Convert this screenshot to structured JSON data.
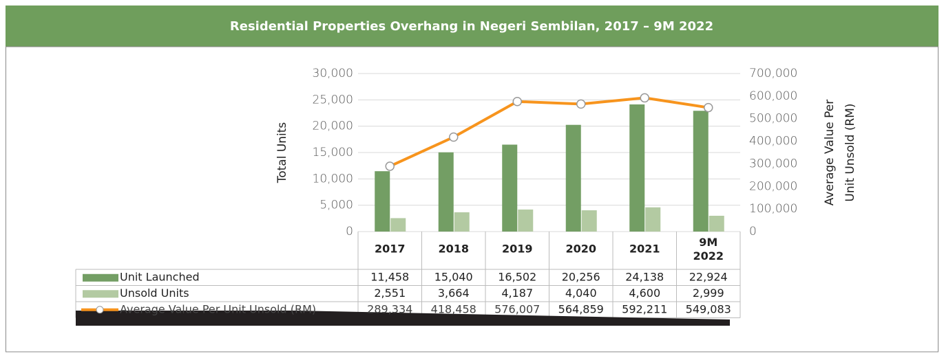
{
  "chart_data": {
    "type": "bar_line_table",
    "title": "Residential Properties Overhang in Negeri Sembilan, 2017 – 9M 2022",
    "ylabel": "Total Units",
    "y2label": "Average Value Per Unit Unsold (RM)",
    "categories": [
      "2017",
      "2018",
      "2019",
      "2020",
      "2021",
      "9M 2022"
    ],
    "series": [
      {
        "name": "Unit Launched",
        "color": "#739e64",
        "type": "bar",
        "values": [
          11458,
          15040,
          16502,
          20256,
          24138,
          22924
        ],
        "value_labels": [
          "11,458",
          "15,040",
          "16,502",
          "20,256",
          "24,138",
          "22,924"
        ]
      },
      {
        "name": "Unsold Units",
        "color": "#b3caa2",
        "type": "bar",
        "values": [
          2551,
          3664,
          4187,
          4040,
          4600,
          2999
        ],
        "value_labels": [
          "2,551",
          "3,664",
          "4,187",
          "4,040",
          "4,600",
          "2,999"
        ]
      },
      {
        "name": "Average Value Per Unit Unsold (RM)",
        "color": "#f7941d",
        "type": "line",
        "axis": "y2",
        "values": [
          289334,
          418458,
          576007,
          564859,
          592211,
          549083
        ],
        "value_labels": [
          "289,334",
          "418,458",
          "576,007",
          "564,859",
          "592,211",
          "549,083"
        ]
      }
    ],
    "ylim": [
      0,
      30000
    ],
    "yticks": [
      0,
      {
        "value": 5000,
        "label": "5,000"
      },
      {
        "value": 10000,
        "label": "10,000"
      },
      {
        "value": 15000,
        "label": "15,000"
      },
      {
        "value": 20000,
        "label": "20,000"
      },
      {
        "value": 25000,
        "label": "25,000"
      },
      {
        "value": 30000,
        "label": "30,000"
      }
    ],
    "y2lim": [
      0,
      700000
    ],
    "y2ticks": [
      0,
      {
        "value": 100000,
        "label": "100,000"
      },
      {
        "value": 200000,
        "label": "200,000"
      },
      {
        "value": 300000,
        "label": "300,000"
      },
      {
        "value": 400000,
        "label": "400,000"
      },
      {
        "value": 500000,
        "label": "500,000"
      },
      {
        "value": 600000,
        "label": "600,000"
      },
      {
        "value": 700000,
        "label": "700,000"
      }
    ],
    "grid": true
  }
}
